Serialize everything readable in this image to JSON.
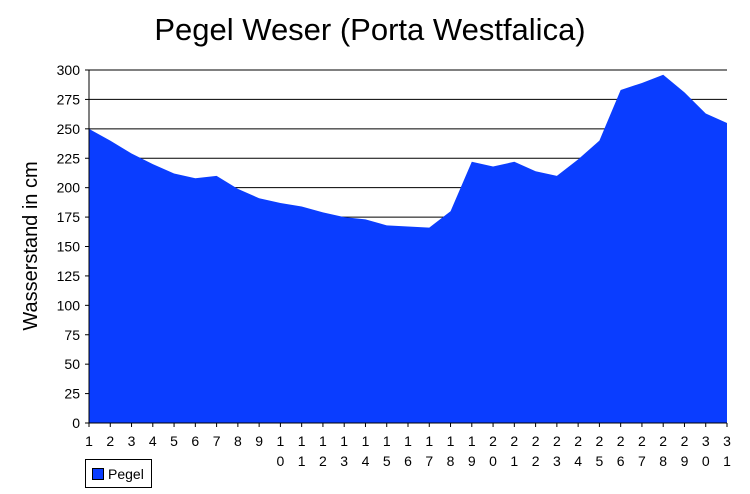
{
  "chart_data": {
    "type": "area",
    "title": "Pegel Weser (Porta Westfalica)",
    "ylabel": "Wasserstand in cm",
    "xlabel": "",
    "ylim": [
      0,
      300
    ],
    "yticks": [
      0,
      25,
      50,
      75,
      100,
      125,
      150,
      175,
      200,
      225,
      250,
      275,
      300
    ],
    "grid": true,
    "legend_position": "bottom-left",
    "categories": [
      "1",
      "2",
      "3",
      "4",
      "5",
      "6",
      "7",
      "8",
      "9",
      "10",
      "11",
      "12",
      "13",
      "14",
      "15",
      "16",
      "17",
      "18",
      "19",
      "20",
      "21",
      "22",
      "23",
      "24",
      "25",
      "26",
      "27",
      "28",
      "29",
      "30",
      "31"
    ],
    "series": [
      {
        "name": "Pegel",
        "color": "#0a3dff",
        "values": [
          250,
          240,
          229,
          220,
          212,
          208,
          210,
          199,
          191,
          187,
          184,
          179,
          175,
          173,
          168,
          167,
          166,
          180,
          222,
          218,
          222,
          214,
          210,
          224,
          240,
          283,
          289,
          296,
          281,
          263,
          255
        ]
      }
    ]
  }
}
